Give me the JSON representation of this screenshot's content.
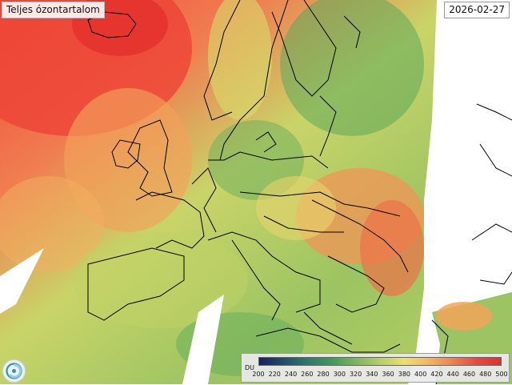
{
  "title": "Teljes ózontartalom",
  "date": "2026-02-27",
  "legend": {
    "unit": "DU",
    "min": 200,
    "max": 500,
    "ticks": [
      "200",
      "220",
      "240",
      "260",
      "280",
      "300",
      "320",
      "340",
      "360",
      "380",
      "400",
      "420",
      "440",
      "460",
      "480",
      "500"
    ],
    "colors": [
      "#1a1f5e",
      "#1f4d6e",
      "#2f7a6c",
      "#3f9a5a",
      "#78b85c",
      "#b6cf63",
      "#eddf6f",
      "#f3b85f",
      "#ee8251",
      "#e9493e",
      "#e0302e"
    ]
  },
  "map": {
    "region": "Europe",
    "field": "total ozone column",
    "no_data_color": "#ffffff",
    "border_color": "#000000"
  },
  "logo": {
    "icon": "swirl-logo-icon"
  }
}
